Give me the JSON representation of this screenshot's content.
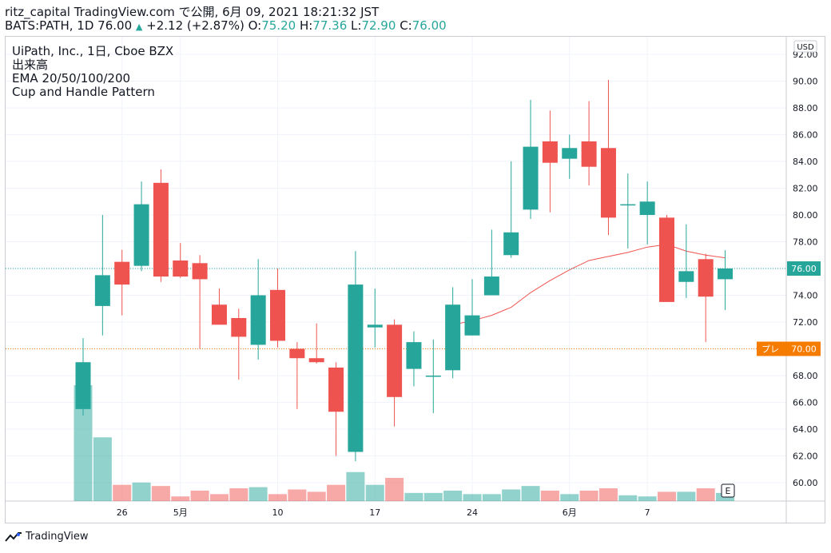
{
  "header": {
    "line1": "ritz_capital TradingView.com で公開, 6月 09, 2021 18:21:32 JST",
    "symbol": "BATS:PATH, 1D",
    "last": "76.00",
    "change": "+2.12 (+2.87%)",
    "o_label": "O:",
    "o_value": "75.20",
    "h_label": "H:",
    "h_value": "77.36",
    "l_label": "L:",
    "l_value": "72.90",
    "c_label": "C:",
    "c_value": "76.00"
  },
  "legend": {
    "title": "UiPath, Inc., 1日, Cboe BZX",
    "volume": "出来高",
    "ema": "EMA 20/50/100/200",
    "pattern": "Cup and Handle Pattern"
  },
  "currency": "USD",
  "price_tag": "76.00",
  "alert_tag": {
    "label": "プレ",
    "value": "70.00"
  },
  "earnings_marker": "E",
  "footer_brand": "TradingView",
  "colors": {
    "up": "#26a69a",
    "down": "#ef5350",
    "ema": "#ef5350",
    "alert": "#f57c00",
    "grid": "#f0f3fa",
    "axis_text": "#131722"
  },
  "chart_data": {
    "type": "candlestick",
    "y_axis": {
      "min": 59,
      "max": 92,
      "ticks": [
        60,
        62,
        64,
        66,
        68,
        70,
        72,
        74,
        76,
        78,
        80,
        82,
        84,
        86,
        88,
        90,
        92
      ],
      "unit": "USD",
      "grid": true
    },
    "x_ticks": [
      "26",
      "5月",
      "10",
      "17",
      "24",
      "6月",
      "7"
    ],
    "x_tick_index": [
      2,
      5,
      10,
      15,
      20,
      25,
      29
    ],
    "candles": [
      {
        "o": 65.5,
        "h": 70.8,
        "l": 65.0,
        "c": 69.0
      },
      {
        "o": 73.2,
        "h": 80.0,
        "l": 71.0,
        "c": 75.5
      },
      {
        "o": 76.5,
        "h": 77.4,
        "l": 72.5,
        "c": 74.8
      },
      {
        "o": 76.2,
        "h": 82.5,
        "l": 75.8,
        "c": 80.8
      },
      {
        "o": 82.4,
        "h": 83.4,
        "l": 75.0,
        "c": 75.4
      },
      {
        "o": 76.6,
        "h": 77.9,
        "l": 75.3,
        "c": 75.4
      },
      {
        "o": 76.4,
        "h": 77.0,
        "l": 70.0,
        "c": 75.2
      },
      {
        "o": 73.3,
        "h": 74.5,
        "l": 71.8,
        "c": 71.8
      },
      {
        "o": 72.3,
        "h": 73.0,
        "l": 67.7,
        "c": 70.9
      },
      {
        "o": 70.3,
        "h": 76.7,
        "l": 69.2,
        "c": 74.0
      },
      {
        "o": 74.4,
        "h": 76.0,
        "l": 70.1,
        "c": 70.6
      },
      {
        "o": 70.0,
        "h": 70.5,
        "l": 65.5,
        "c": 69.3
      },
      {
        "o": 69.3,
        "h": 71.9,
        "l": 68.9,
        "c": 69.0
      },
      {
        "o": 68.6,
        "h": 69.0,
        "l": 62.0,
        "c": 65.3
      },
      {
        "o": 62.3,
        "h": 77.3,
        "l": 61.6,
        "c": 74.8
      },
      {
        "o": 71.6,
        "h": 74.5,
        "l": 70.1,
        "c": 71.8
      },
      {
        "o": 71.8,
        "h": 72.2,
        "l": 64.2,
        "c": 66.4
      },
      {
        "o": 68.5,
        "h": 71.3,
        "l": 67.2,
        "c": 70.5
      },
      {
        "o": 68.0,
        "h": 70.7,
        "l": 65.2,
        "c": 68.0
      },
      {
        "o": 68.4,
        "h": 74.6,
        "l": 67.8,
        "c": 73.3
      },
      {
        "o": 71.0,
        "h": 75.2,
        "l": 71.0,
        "c": 72.5
      },
      {
        "o": 74.0,
        "h": 78.9,
        "l": 74.0,
        "c": 75.4
      },
      {
        "o": 77.0,
        "h": 84.0,
        "l": 76.8,
        "c": 78.7
      },
      {
        "o": 80.4,
        "h": 88.6,
        "l": 79.7,
        "c": 85.1
      },
      {
        "o": 85.5,
        "h": 87.8,
        "l": 80.2,
        "c": 83.9
      },
      {
        "o": 84.2,
        "h": 86.0,
        "l": 82.7,
        "c": 85.0
      },
      {
        "o": 85.5,
        "h": 88.5,
        "l": 82.2,
        "c": 83.6
      },
      {
        "o": 85.0,
        "h": 90.1,
        "l": 78.5,
        "c": 79.8
      },
      {
        "o": 80.8,
        "h": 83.1,
        "l": 77.5,
        "c": 80.8
      },
      {
        "o": 80.0,
        "h": 82.5,
        "l": 77.8,
        "c": 81.0
      },
      {
        "o": 79.8,
        "h": 80.0,
        "l": 73.5,
        "c": 73.5
      },
      {
        "o": 75.0,
        "h": 79.3,
        "l": 73.8,
        "c": 75.8
      },
      {
        "o": 76.7,
        "h": 77.1,
        "l": 70.5,
        "c": 73.9
      },
      {
        "o": 75.2,
        "h": 77.36,
        "l": 72.9,
        "c": 76.0
      }
    ],
    "volume_relative": [
      1.0,
      0.55,
      0.14,
      0.16,
      0.13,
      0.04,
      0.09,
      0.06,
      0.11,
      0.12,
      0.06,
      0.1,
      0.08,
      0.14,
      0.25,
      0.14,
      0.2,
      0.07,
      0.07,
      0.09,
      0.06,
      0.06,
      0.1,
      0.13,
      0.09,
      0.06,
      0.09,
      0.11,
      0.05,
      0.04,
      0.08,
      0.08,
      0.11,
      0.07
    ],
    "ema": [
      null,
      null,
      null,
      null,
      null,
      null,
      null,
      null,
      null,
      null,
      null,
      null,
      null,
      null,
      null,
      null,
      null,
      null,
      null,
      71.8,
      72.1,
      72.5,
      73.1,
      74.2,
      75.1,
      75.9,
      76.6,
      76.9,
      77.2,
      77.6,
      77.8,
      77.3,
      77.0,
      76.8
    ],
    "horizontal_line": 70.0,
    "last_price": 76.0
  }
}
